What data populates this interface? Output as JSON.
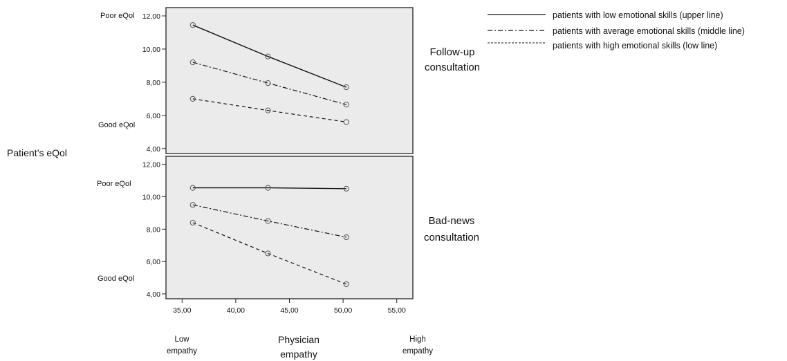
{
  "chart_data": [
    {
      "type": "line",
      "panel_label": [
        "Follow-up",
        "consultation"
      ],
      "x": [
        36,
        43,
        50.3
      ],
      "xlim": [
        33.5,
        56.5
      ],
      "ylim": [
        3.7,
        12.5
      ],
      "yticks": [
        "12,00",
        "10,00",
        "8,00",
        "6,00",
        "4,00"
      ],
      "ytick_values": [
        12,
        10,
        8,
        6,
        4
      ],
      "annotations": [
        "Poor eQol",
        "Good eQol"
      ],
      "series": [
        {
          "values": [
            11.45,
            9.55,
            7.7
          ],
          "style": "solid"
        },
        {
          "values": [
            9.2,
            7.95,
            6.65
          ],
          "style": "dashdot"
        },
        {
          "values": [
            7.0,
            6.3,
            5.6
          ],
          "style": "dashed"
        }
      ],
      "grid": false
    },
    {
      "type": "line",
      "panel_label": [
        "Bad-news",
        "consultation"
      ],
      "x": [
        36,
        43,
        50.3
      ],
      "xlim": [
        33.5,
        56.5
      ],
      "ylim": [
        3.7,
        12.5
      ],
      "yticks": [
        "12,00",
        "10,00",
        "8,00",
        "6,00",
        "4,00"
      ],
      "ytick_values": [
        12,
        10,
        8,
        6,
        4
      ],
      "xticks": [
        "35,00",
        "40,00",
        "45,00",
        "50,00",
        "55,00"
      ],
      "xtick_values": [
        35,
        40,
        45,
        50,
        55
      ],
      "annotations": [
        "Poor eQol",
        "Good eQol"
      ],
      "series": [
        {
          "values": [
            10.55,
            10.55,
            10.5
          ],
          "style": "solid"
        },
        {
          "values": [
            9.5,
            8.5,
            7.5
          ],
          "style": "dashdot"
        },
        {
          "values": [
            8.4,
            6.5,
            4.6
          ],
          "style": "dashed"
        }
      ],
      "grid": false
    }
  ],
  "ylabel": "Patient’s eQol",
  "xlabel": [
    "Physician",
    "empathy"
  ],
  "x_ends": {
    "low": [
      "Low",
      "empathy"
    ],
    "high": [
      "High",
      "empathy"
    ]
  },
  "legend": [
    {
      "label": "patients with low emotional skills (upper line)",
      "style": "solid"
    },
    {
      "label": "patients with average emotional skills (middle line)",
      "style": "dashdot"
    },
    {
      "label": "patients with high emotional skills (low line)",
      "style": "dashed"
    }
  ],
  "legend_position": "top-right",
  "colors": {
    "panel_bg": "#ebebeb",
    "ink": "#111111",
    "marker": "#555555"
  }
}
